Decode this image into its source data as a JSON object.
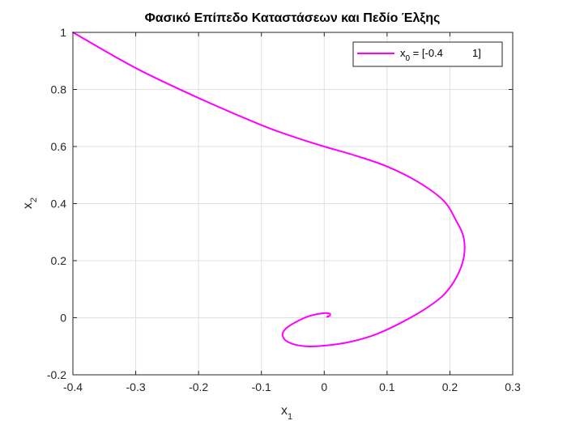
{
  "chart_data": {
    "type": "line",
    "title": "Φασικό Επίπεδο Καταστάσεων και Πεδίο Έλξης",
    "xlabel": {
      "base": "x",
      "sub": "1"
    },
    "ylabel": {
      "base": "x",
      "sub": "2"
    },
    "xlim": [
      -0.4,
      0.3
    ],
    "ylim": [
      -0.2,
      1.0
    ],
    "xticks": [
      -0.4,
      -0.3,
      -0.2,
      -0.1,
      0,
      0.1,
      0.2,
      0.3
    ],
    "yticks": [
      -0.2,
      0,
      0.2,
      0.4,
      0.6,
      0.8,
      1
    ],
    "grid": true,
    "legend_position": "top-right",
    "series": [
      {
        "name": "x0 = [-0.4          1]",
        "legend": {
          "base": "x",
          "sub": "0",
          "rest": " = [-0.4          1]"
        },
        "color": "#ff00ff",
        "x": [
          -0.4,
          -0.3,
          -0.2,
          -0.1,
          -0.05,
          0,
          0.05,
          0.1,
          0.15,
          0.19,
          0.21,
          0.222,
          0.222,
          0.21,
          0.19,
          0.16,
          0.12,
          0.08,
          0.04,
          0.0,
          -0.03,
          -0.055,
          -0.066,
          -0.062,
          -0.045,
          -0.025,
          -0.005,
          0.008,
          0.009,
          0.005,
          0.006
        ],
        "y": [
          1.0,
          0.875,
          0.77,
          0.675,
          0.635,
          0.6,
          0.568,
          0.53,
          0.475,
          0.41,
          0.34,
          0.28,
          0.21,
          0.14,
          0.08,
          0.03,
          -0.02,
          -0.06,
          -0.085,
          -0.098,
          -0.1,
          -0.088,
          -0.065,
          -0.04,
          -0.015,
          0.005,
          0.015,
          0.015,
          0.008,
          0.003,
          0.006
        ]
      }
    ]
  }
}
